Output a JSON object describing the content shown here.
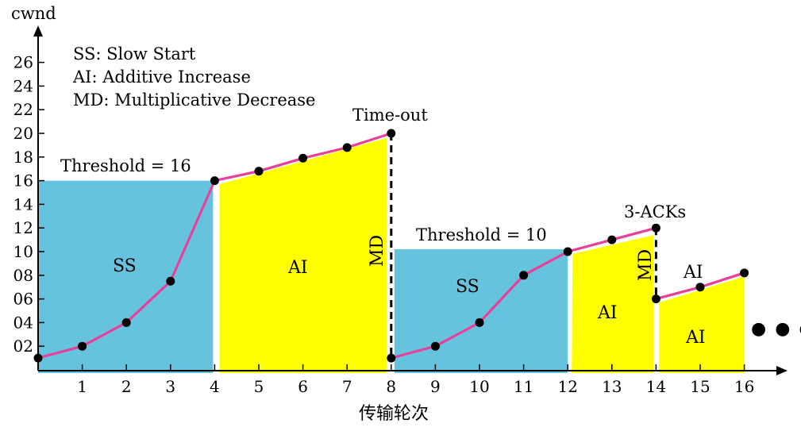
{
  "chart_data": {
    "type": "line",
    "ylabel": "cwnd",
    "xlabel": "传输轮次",
    "yticks": [
      "02",
      "04",
      "06",
      "08",
      "10",
      "12",
      "14",
      "16",
      "18",
      "20",
      "22",
      "24",
      "26"
    ],
    "ytick_values": [
      2,
      4,
      6,
      8,
      10,
      12,
      14,
      16,
      18,
      20,
      22,
      24,
      26
    ],
    "xticks": [
      "1",
      "2",
      "3",
      "4",
      "5",
      "6",
      "7",
      "8",
      "9",
      "10",
      "11",
      "12",
      "13",
      "14",
      "15",
      "16"
    ],
    "xtick_values": [
      1,
      2,
      3,
      4,
      5,
      6,
      7,
      8,
      9,
      10,
      11,
      12,
      13,
      14,
      15,
      16
    ],
    "xlim": [
      0,
      17
    ],
    "ylim": [
      0,
      28
    ],
    "legend": [
      "SS: Slow Start",
      "AI: Additive Increase",
      "MD: Multiplicative Decrease"
    ],
    "series": [
      {
        "points": [
          [
            0,
            1
          ],
          [
            1,
            2
          ],
          [
            2,
            4
          ],
          [
            3,
            7.5
          ],
          [
            4,
            16
          ],
          [
            5,
            16.8
          ],
          [
            6,
            17.9
          ],
          [
            7,
            18.8
          ],
          [
            8,
            20
          ],
          [
            8,
            1
          ],
          [
            9,
            2
          ],
          [
            10,
            4
          ],
          [
            11,
            8
          ],
          [
            12,
            10
          ],
          [
            13,
            11
          ],
          [
            14,
            12
          ],
          [
            14,
            6
          ],
          [
            15,
            7
          ],
          [
            16,
            8.2
          ]
        ],
        "color": "#e8409a"
      }
    ],
    "annotations": {
      "threshold1": "Threshold = 16",
      "threshold2": "Threshold = 10",
      "timeout": "Time-out",
      "acks": "3-ACKs",
      "md": "MD",
      "ss": "SS",
      "ai": "AI",
      "continuation": "● ● ●"
    },
    "colors": {
      "ss_region": "#66c3de",
      "ai_region": "#ffff00",
      "line": "#e8409a",
      "marker": "#000000"
    }
  }
}
